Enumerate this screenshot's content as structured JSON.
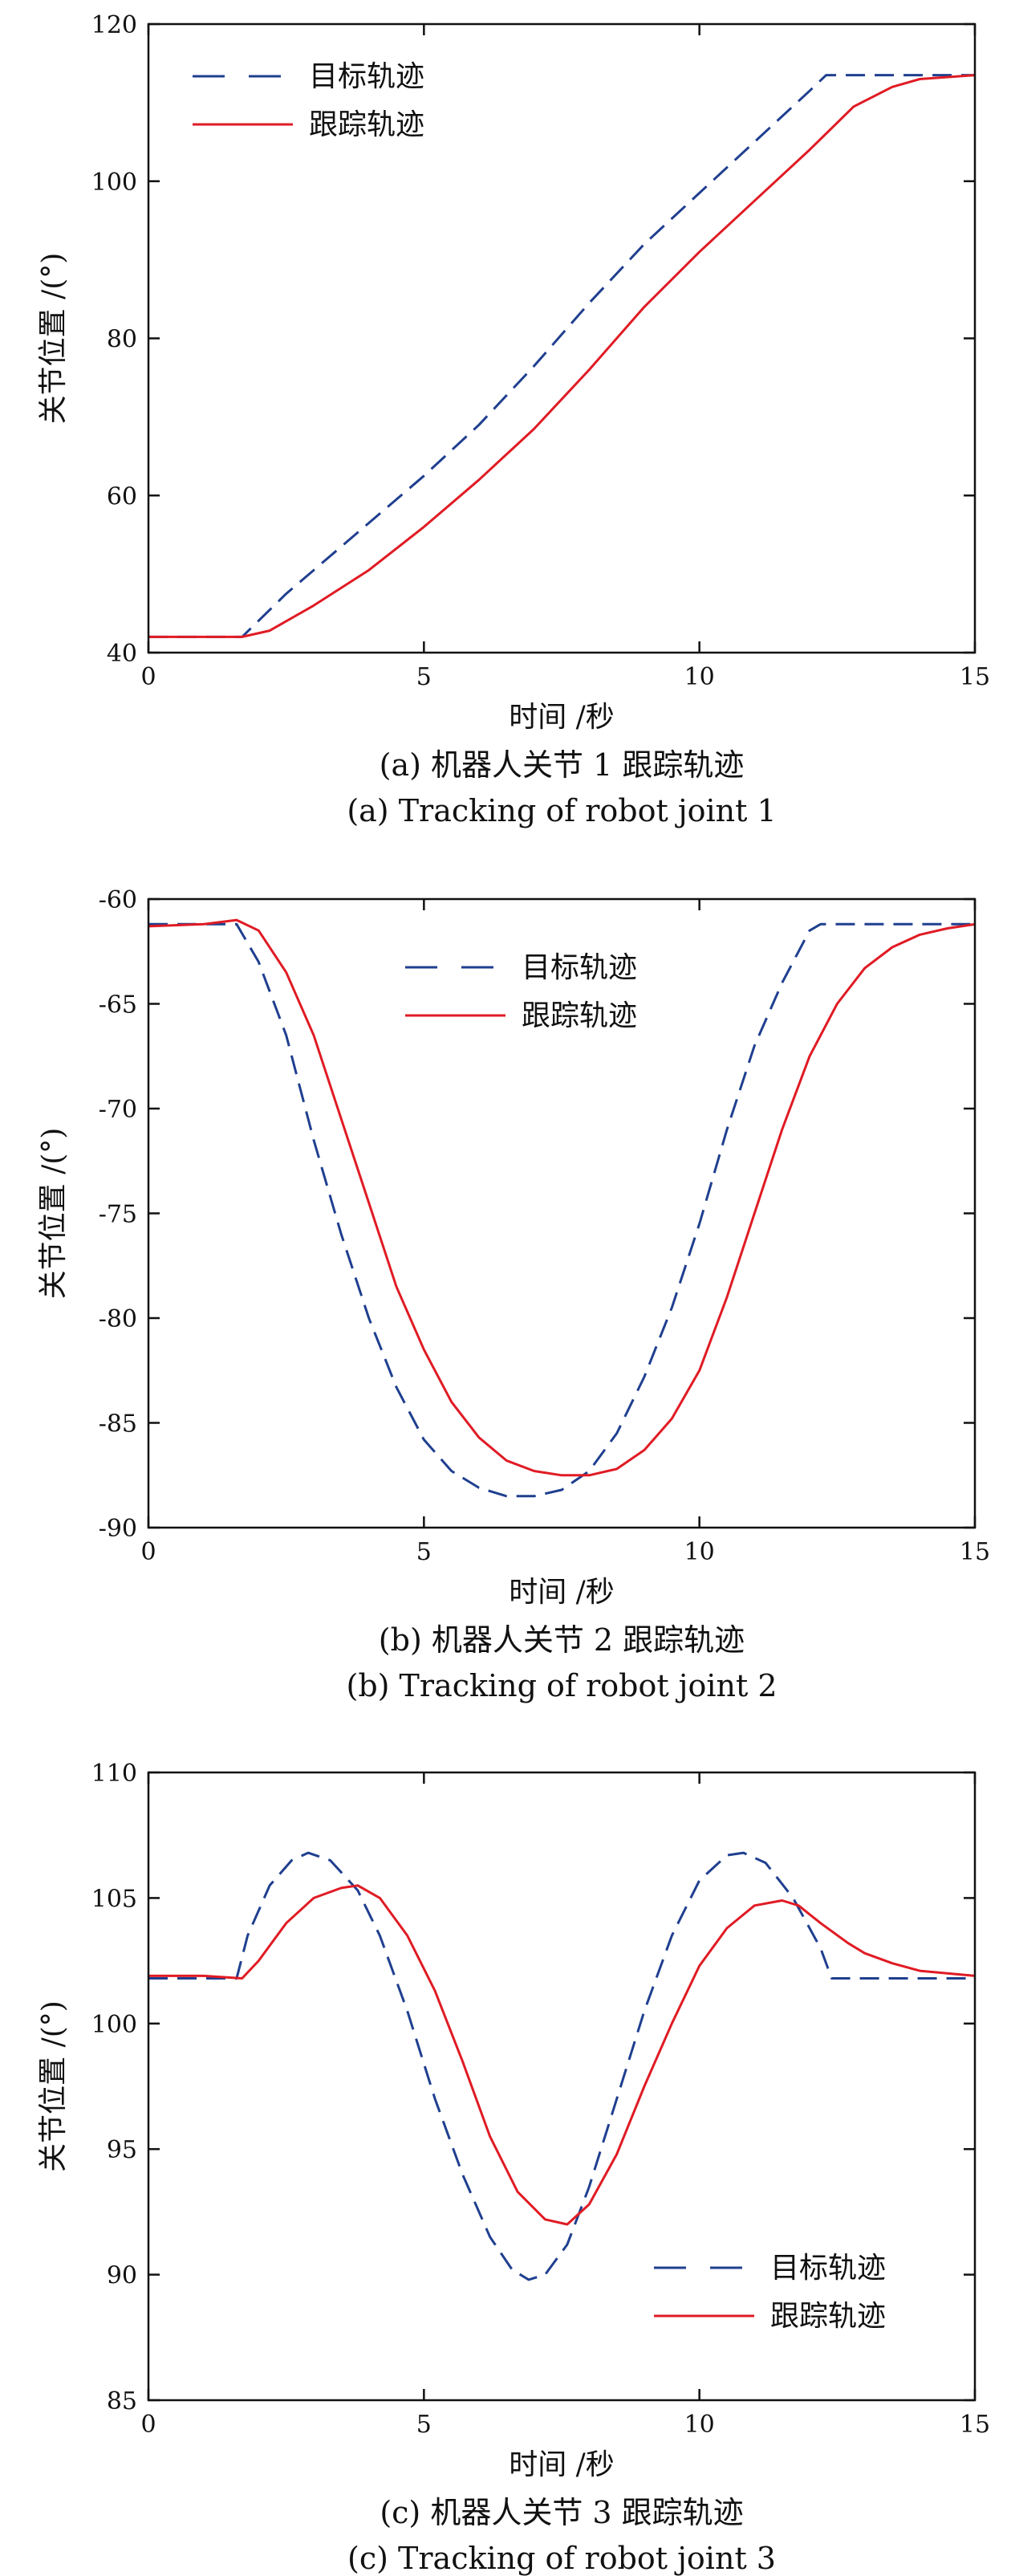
{
  "colors": {
    "target": "#1f3f8f",
    "tracking": "#e01b24",
    "axis": "#111111"
  },
  "chart_data": [
    {
      "type": "line",
      "panel": "a",
      "xlabel": "时间 /秒",
      "ylabel": "关节位置 /(°)",
      "xlim": [
        0,
        15
      ],
      "ylim": [
        40,
        120
      ],
      "xticks": [
        "0",
        "5",
        "10",
        "15"
      ],
      "yticks": [
        "40",
        "60",
        "80",
        "100",
        "120"
      ],
      "legend_position": "top-left",
      "caption_cn": "(a) 机器人关节 1 跟踪轨迹",
      "caption_en": "(a) Tracking of robot joint 1",
      "series": [
        {
          "name": "目标轨迹",
          "style": "dashed",
          "x": [
            0,
            1.7,
            2.5,
            4,
            5,
            6,
            7,
            8,
            9,
            10,
            11,
            12,
            12.3,
            13,
            14,
            15
          ],
          "y": [
            42.0,
            42.0,
            47.5,
            56.5,
            62.5,
            69,
            76.5,
            84.5,
            92,
            98.5,
            105,
            111.5,
            113.5,
            113.5,
            113.5,
            113.5
          ]
        },
        {
          "name": "跟踪轨迹",
          "style": "solid",
          "x": [
            0,
            1,
            1.7,
            2.2,
            3,
            4,
            5,
            6,
            7,
            8,
            9,
            10,
            11,
            12,
            12.8,
            13.5,
            14,
            15
          ],
          "y": [
            42.0,
            42.0,
            42.0,
            42.8,
            46,
            50.5,
            56,
            62,
            68.5,
            76,
            84,
            91,
            97.5,
            104,
            109.5,
            112,
            113,
            113.5
          ]
        }
      ]
    },
    {
      "type": "line",
      "panel": "b",
      "xlabel": "时间 /秒",
      "ylabel": "关节位置 /(°)",
      "xlim": [
        0,
        15
      ],
      "ylim": [
        -90,
        -60
      ],
      "xticks": [
        "0",
        "5",
        "10",
        "15"
      ],
      "yticks": [
        "-90",
        "-85",
        "-80",
        "-75",
        "-70",
        "-65",
        "-60"
      ],
      "legend_position": "top-center",
      "caption_cn": "(b) 机器人关节 2 跟踪轨迹",
      "caption_en": "(b) Tracking of robot joint 2",
      "series": [
        {
          "name": "目标轨迹",
          "style": "dashed",
          "x": [
            0,
            1.6,
            2,
            2.5,
            3,
            3.5,
            4,
            4.5,
            5,
            5.5,
            6,
            6.5,
            7,
            7.5,
            8,
            8.5,
            9,
            9.5,
            10,
            10.5,
            11,
            11.5,
            12,
            12.2,
            13,
            14,
            15
          ],
          "y": [
            -61.2,
            -61.2,
            -63,
            -66.5,
            -71.5,
            -76,
            -80,
            -83.3,
            -85.8,
            -87.3,
            -88.1,
            -88.5,
            -88.5,
            -88.2,
            -87.3,
            -85.5,
            -82.8,
            -79.5,
            -75.5,
            -71,
            -67,
            -64,
            -61.5,
            -61.2,
            -61.2,
            -61.2,
            -61.2
          ]
        },
        {
          "name": "跟踪轨迹",
          "style": "solid",
          "x": [
            0,
            1,
            1.6,
            2,
            2.5,
            3,
            3.5,
            4,
            4.5,
            5,
            5.5,
            6,
            6.5,
            7,
            7.5,
            8,
            8.5,
            9,
            9.5,
            10,
            10.5,
            11,
            11.5,
            12,
            12.5,
            13,
            13.5,
            14,
            14.5,
            15
          ],
          "y": [
            -61.3,
            -61.2,
            -61.0,
            -61.5,
            -63.5,
            -66.5,
            -70.5,
            -74.5,
            -78.5,
            -81.5,
            -84,
            -85.7,
            -86.8,
            -87.3,
            -87.5,
            -87.5,
            -87.2,
            -86.3,
            -84.8,
            -82.5,
            -79,
            -75,
            -71,
            -67.5,
            -65,
            -63.3,
            -62.3,
            -61.7,
            -61.4,
            -61.2
          ]
        }
      ]
    },
    {
      "type": "line",
      "panel": "c",
      "xlabel": "时间 /秒",
      "ylabel": "关节位置 /(°)",
      "xlim": [
        0,
        15
      ],
      "ylim": [
        85,
        110
      ],
      "xticks": [
        "0",
        "5",
        "10",
        "15"
      ],
      "yticks": [
        "85",
        "90",
        "95",
        "100",
        "105",
        "110"
      ],
      "legend_position": "bottom-right",
      "caption_cn": "(c) 机器人关节 3 跟踪轨迹",
      "caption_en": "(c) Tracking of robot joint 3",
      "series": [
        {
          "name": "目标轨迹",
          "style": "dashed",
          "x": [
            0,
            1.6,
            1.8,
            2.2,
            2.6,
            2.9,
            3.3,
            3.8,
            4.2,
            4.7,
            5.2,
            5.7,
            6.2,
            6.6,
            6.9,
            7.2,
            7.6,
            8,
            8.5,
            9,
            9.5,
            10,
            10.5,
            10.8,
            11.2,
            11.7,
            12.2,
            12.4,
            13,
            14,
            15
          ],
          "y": [
            101.8,
            101.8,
            103.5,
            105.5,
            106.5,
            106.8,
            106.5,
            105.3,
            103.5,
            100.5,
            97,
            94,
            91.5,
            90.2,
            89.8,
            90,
            91.2,
            93.5,
            97,
            100.5,
            103.5,
            105.7,
            106.7,
            106.8,
            106.4,
            105,
            103,
            101.8,
            101.8,
            101.8,
            101.8
          ]
        },
        {
          "name": "跟踪轨迹",
          "style": "solid",
          "x": [
            0,
            1,
            1.7,
            2,
            2.5,
            3,
            3.5,
            3.8,
            4.2,
            4.7,
            5.2,
            5.7,
            6.2,
            6.7,
            7.2,
            7.6,
            8,
            8.5,
            9,
            9.5,
            10,
            10.5,
            11,
            11.5,
            11.8,
            12.2,
            12.7,
            13,
            13.5,
            14,
            14.5,
            15
          ],
          "y": [
            101.9,
            101.9,
            101.8,
            102.5,
            104,
            105,
            105.4,
            105.5,
            105,
            103.5,
            101.3,
            98.5,
            95.5,
            93.3,
            92.2,
            92,
            92.8,
            94.8,
            97.5,
            100,
            102.3,
            103.8,
            104.7,
            104.9,
            104.7,
            104,
            103.2,
            102.8,
            102.4,
            102.1,
            102.0,
            101.9
          ]
        }
      ]
    }
  ]
}
